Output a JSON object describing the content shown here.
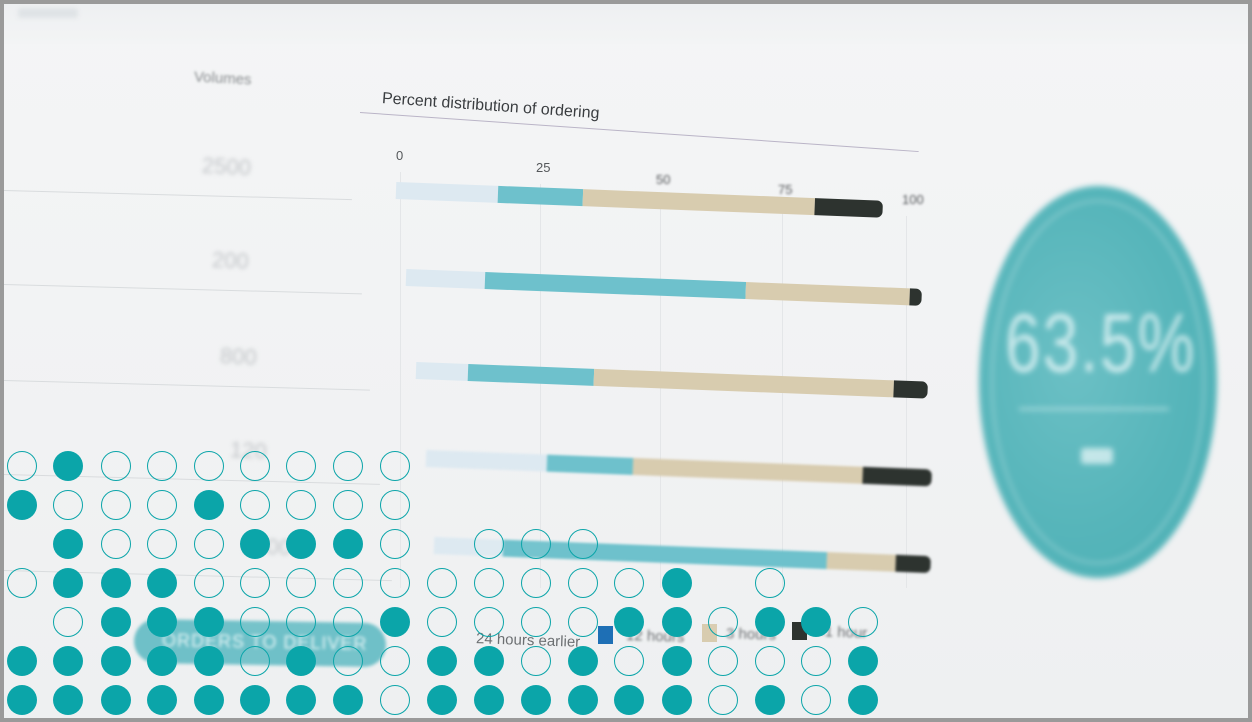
{
  "volumes": {
    "title": "Volumes",
    "values": [
      "2500",
      "200",
      "800",
      "120",
      "1000"
    ]
  },
  "chart": {
    "title": "Percent distribution of ordering",
    "ticks": [
      "0",
      "25",
      "50",
      "75",
      "100"
    ],
    "colors": [
      "#dde9f1",
      "#6ec1cc",
      "#d8ccaf",
      "#2d332f"
    ],
    "bars": [
      [
        18,
        15,
        41,
        12
      ],
      [
        14,
        46,
        29,
        2
      ],
      [
        9,
        22,
        52,
        6
      ],
      [
        21,
        15,
        40,
        12
      ],
      [
        12,
        56,
        12,
        6
      ]
    ]
  },
  "legend": {
    "button_label": "ORDERS TO DELIVER",
    "items": [
      {
        "label": "24 hours earlier",
        "color": "#1e6fb5"
      },
      {
        "label": "12 hours",
        "color": "#d8ccaf"
      },
      {
        "label": "3 hours",
        "color": "#2d332f"
      },
      {
        "label": "<1 hour",
        "color": "#2d332f"
      }
    ]
  },
  "kpi": {
    "value": "63.5%",
    "label": "",
    "color": "#56b5ba"
  },
  "dot_accent": "#0ba5a9",
  "dot_columns": [
    "ff.o.fo",
    "ffoffof",
    "ffffooo",
    "ffffooo",
    "fffoofo",
    "fooofoo",
    "ffoofoo",
    "fooofoo",
    "oofoooo",
    "ffoo",
    "ffooo",
    "foooo",
    "ffooo",
    "fofo",
    "ffff",
    "ooo",
    "fofo",
    "oof",
    "ffo"
  ]
}
